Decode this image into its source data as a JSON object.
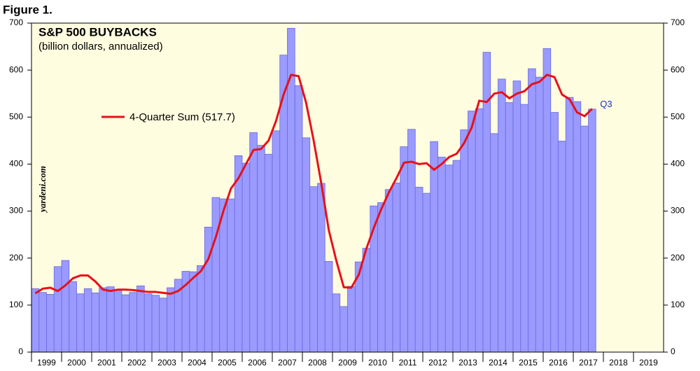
{
  "chart_data": {
    "type": "bar",
    "figure_label": "Figure 1.",
    "title": "S&P 500 BUYBACKS",
    "subtitle": "(billion dollars, annualized)",
    "watermark": "yardeni.com",
    "annotation": "Q3",
    "xlim": [
      1999,
      2020
    ],
    "xticks": [
      1999,
      2000,
      2001,
      2002,
      2003,
      2004,
      2005,
      2006,
      2007,
      2008,
      2009,
      2010,
      2011,
      2012,
      2013,
      2014,
      2015,
      2016,
      2017,
      2018,
      2019
    ],
    "ylim": [
      0,
      700
    ],
    "yticks": [
      0,
      100,
      200,
      300,
      400,
      500,
      600,
      700
    ],
    "y2lim": [
      0,
      700
    ],
    "y2ticks": [
      0,
      100,
      200,
      300,
      400,
      500,
      600,
      700
    ],
    "x": [
      1999,
      1999.25,
      1999.5,
      1999.75,
      2000,
      2000.25,
      2000.5,
      2000.75,
      2001,
      2001.25,
      2001.5,
      2001.75,
      2002,
      2002.25,
      2002.5,
      2002.75,
      2003,
      2003.25,
      2003.5,
      2003.75,
      2004,
      2004.25,
      2004.5,
      2004.75,
      2005,
      2005.25,
      2005.5,
      2005.75,
      2006,
      2006.25,
      2006.5,
      2006.75,
      2007,
      2007.25,
      2007.5,
      2007.75,
      2008,
      2008.25,
      2008.5,
      2008.75,
      2009,
      2009.25,
      2009.5,
      2009.75,
      2010,
      2010.25,
      2010.5,
      2010.75,
      2011,
      2011.25,
      2011.5,
      2011.75,
      2012,
      2012.25,
      2012.5,
      2012.75,
      2013,
      2013.25,
      2013.5,
      2013.75,
      2014,
      2014.25,
      2014.5,
      2014.75,
      2015,
      2015.25,
      2015.5,
      2015.75,
      2016,
      2016.25,
      2016.5,
      2016.75,
      2017,
      2017.25,
      2017.5
    ],
    "series": [
      {
        "type": "bar",
        "color": "#9a9aff",
        "values": [
          135,
          127,
          123,
          182,
          195,
          150,
          124,
          135,
          126,
          137,
          139,
          133,
          122,
          127,
          141,
          124,
          121,
          115,
          137,
          155,
          172,
          171,
          184,
          266,
          329,
          326,
          326,
          418,
          402,
          467,
          440,
          421,
          471,
          632,
          689,
          567,
          456,
          352,
          359,
          193,
          124,
          97,
          140,
          192,
          221,
          311,
          318,
          346,
          360,
          437,
          474,
          351,
          338,
          448,
          415,
          398,
          408,
          473,
          513,
          518,
          638,
          465,
          581,
          531,
          577,
          527,
          603,
          585,
          646,
          510,
          449,
          542,
          533,
          481,
          517
        ]
      },
      {
        "type": "line",
        "name": "4-Quarter Sum (517.7)",
        "color": "#e8101a",
        "values": [
          125,
          135,
          137,
          130,
          142,
          157,
          163,
          163,
          150,
          133,
          130,
          133,
          133,
          132,
          130,
          128,
          128,
          126,
          124,
          130,
          143,
          158,
          172,
          198,
          245,
          300,
          348,
          370,
          400,
          430,
          432,
          450,
          492,
          548,
          590,
          587,
          530,
          450,
          360,
          260,
          195,
          138,
          137,
          165,
          220,
          265,
          305,
          340,
          370,
          403,
          405,
          400,
          402,
          388,
          400,
          415,
          422,
          445,
          478,
          535,
          532,
          550,
          553,
          540,
          550,
          555,
          570,
          575,
          590,
          585,
          548,
          538,
          510,
          502,
          517.7
        ]
      }
    ]
  }
}
